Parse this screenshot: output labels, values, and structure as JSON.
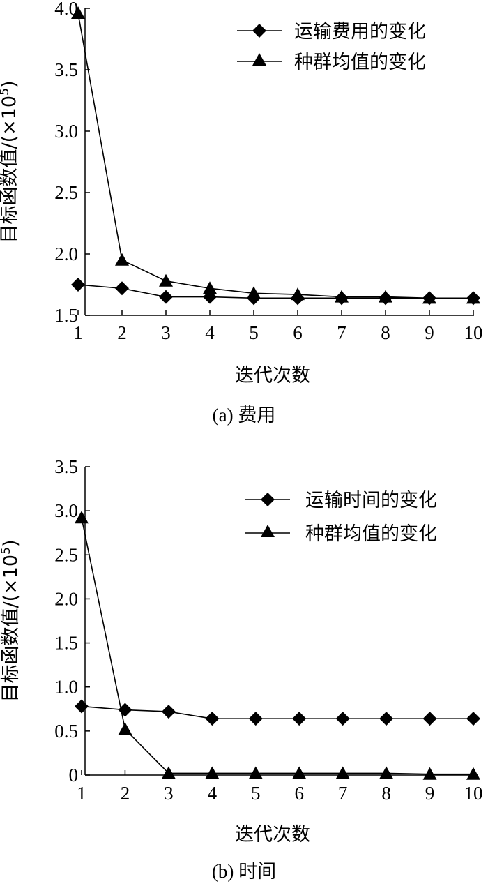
{
  "chart_data": [
    {
      "type": "line",
      "caption": "(a) 费用",
      "xlabel": "迭代次数",
      "ylabel": "目标函数值/(×10",
      "ylabel_sup": "5",
      "ylabel_close": ")",
      "ylim": [
        1.5,
        4.0
      ],
      "yticks": [
        "1.5",
        "2.0",
        "2.5",
        "3.0",
        "3.5",
        "4.0"
      ],
      "ytick_values": [
        1.5,
        2.0,
        2.5,
        3.0,
        3.5,
        4.0
      ],
      "x": [
        1,
        2,
        3,
        4,
        5,
        6,
        7,
        8,
        9,
        10
      ],
      "xticks": [
        "1",
        "2",
        "3",
        "4",
        "5",
        "6",
        "7",
        "8",
        "9",
        "10"
      ],
      "legend_position": "top-right",
      "grid": false,
      "series": [
        {
          "name": "运输费用的变化",
          "marker": "diamond",
          "values": [
            1.75,
            1.72,
            1.65,
            1.65,
            1.64,
            1.64,
            1.64,
            1.64,
            1.64,
            1.64
          ]
        },
        {
          "name": "种群均值的变化",
          "marker": "triangle",
          "values": [
            3.96,
            1.95,
            1.78,
            1.72,
            1.68,
            1.67,
            1.65,
            1.65,
            1.64,
            1.64
          ]
        }
      ]
    },
    {
      "type": "line",
      "caption": "(b) 时间",
      "xlabel": "迭代次数",
      "ylabel": "目标函数值/(×10",
      "ylabel_sup": "5",
      "ylabel_close": ")",
      "ylim": [
        0,
        3.5
      ],
      "yticks": [
        "0",
        "0.5",
        "1.0",
        "1.5",
        "2.0",
        "2.5",
        "3.0",
        "3.5"
      ],
      "ytick_values": [
        0,
        0.5,
        1.0,
        1.5,
        2.0,
        2.5,
        3.0,
        3.5
      ],
      "x": [
        1,
        2,
        3,
        4,
        5,
        6,
        7,
        8,
        9,
        10
      ],
      "xticks": [
        "1",
        "2",
        "3",
        "4",
        "5",
        "6",
        "7",
        "8",
        "9",
        "10"
      ],
      "legend_position": "top-right",
      "grid": false,
      "series": [
        {
          "name": "运输时间的变化",
          "marker": "diamond",
          "values": [
            0.78,
            0.74,
            0.72,
            0.64,
            0.64,
            0.64,
            0.64,
            0.64,
            0.64,
            0.64
          ]
        },
        {
          "name": "种群均值的变化",
          "marker": "triangle",
          "values": [
            2.92,
            0.52,
            0.02,
            0.02,
            0.02,
            0.02,
            0.02,
            0.02,
            0.01,
            0.01
          ]
        }
      ]
    }
  ]
}
